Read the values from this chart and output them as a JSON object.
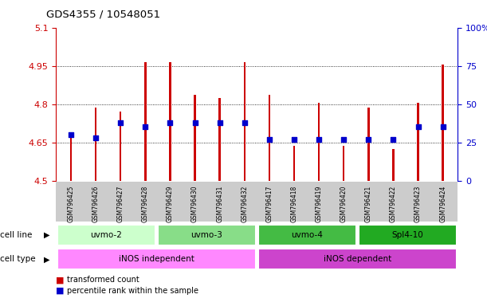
{
  "title": "GDS4355 / 10548051",
  "samples": [
    "GSM796425",
    "GSM796426",
    "GSM796427",
    "GSM796428",
    "GSM796429",
    "GSM796430",
    "GSM796431",
    "GSM796432",
    "GSM796417",
    "GSM796418",
    "GSM796419",
    "GSM796420",
    "GSM796421",
    "GSM796422",
    "GSM796423",
    "GSM796424"
  ],
  "transformed_count": [
    4.67,
    4.785,
    4.77,
    4.965,
    4.965,
    4.835,
    4.825,
    4.963,
    4.835,
    4.635,
    4.805,
    4.635,
    4.785,
    4.625,
    4.805,
    4.955
  ],
  "percentile_rank_pct": [
    30,
    28,
    38,
    35,
    38,
    38,
    38,
    38,
    27,
    27,
    27,
    27,
    27,
    27,
    35,
    35
  ],
  "ymin": 4.5,
  "ymax": 5.1,
  "yticks": [
    4.5,
    4.65,
    4.8,
    4.95,
    5.1
  ],
  "right_yticks": [
    0,
    25,
    50,
    75,
    100
  ],
  "cell_lines": [
    {
      "label": "uvmo-2",
      "start": 0,
      "end": 3,
      "color": "#ccffcc"
    },
    {
      "label": "uvmo-3",
      "start": 4,
      "end": 7,
      "color": "#88dd88"
    },
    {
      "label": "uvmo-4",
      "start": 8,
      "end": 11,
      "color": "#44bb44"
    },
    {
      "label": "Spl4-10",
      "start": 12,
      "end": 15,
      "color": "#22aa22"
    }
  ],
  "cell_types": [
    {
      "label": "iNOS independent",
      "start": 0,
      "end": 7,
      "color": "#ff88ff"
    },
    {
      "label": "iNOS dependent",
      "start": 8,
      "end": 15,
      "color": "#cc44cc"
    }
  ],
  "bar_color": "#cc0000",
  "dot_color": "#0000cc",
  "left_axis_color": "#cc0000",
  "right_axis_color": "#0000cc",
  "bar_width": 0.08,
  "dot_size": 18
}
